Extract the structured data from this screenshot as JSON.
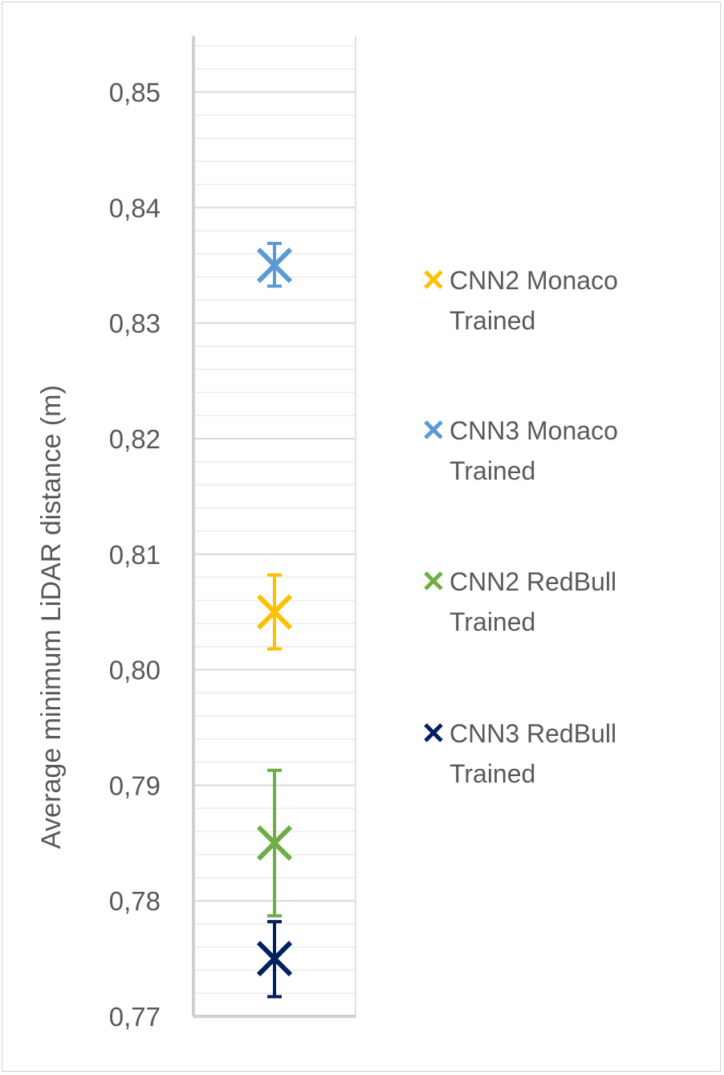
{
  "chart_data": {
    "type": "scatter",
    "ylabel": "Average minimum LiDAR distance (m)",
    "ylim": [
      0.77,
      0.855
    ],
    "y_ticks": [
      "0,77",
      "0,78",
      "0,79",
      "0,80",
      "0,81",
      "0,82",
      "0,83",
      "0,84",
      "0,85"
    ],
    "grid": true,
    "legend_position": "right",
    "series": [
      {
        "name": "CNN2 Monaco Trained",
        "legend_line1": "CNN2 Monaco",
        "legend_line2": "Trained",
        "color": "#FFC000",
        "y": 0.805,
        "err_low": 0.8018,
        "err_high": 0.8082
      },
      {
        "name": "CNN3 Monaco Trained",
        "legend_line1": "CNN3 Monaco",
        "legend_line2": "Trained",
        "color": "#5B9BD5",
        "y": 0.835,
        "err_low": 0.8332,
        "err_high": 0.8369
      },
      {
        "name": "CNN2 RedBull Trained",
        "legend_line1": "CNN2 RedBull",
        "legend_line2": "Trained",
        "color": "#70AD47",
        "y": 0.785,
        "err_low": 0.7787,
        "err_high": 0.7913
      },
      {
        "name": "CNN3 RedBull Trained",
        "legend_line1": "CNN3 RedBull",
        "legend_line2": "Trained",
        "color": "#002060",
        "y": 0.775,
        "err_low": 0.7717,
        "err_high": 0.7782
      }
    ]
  }
}
